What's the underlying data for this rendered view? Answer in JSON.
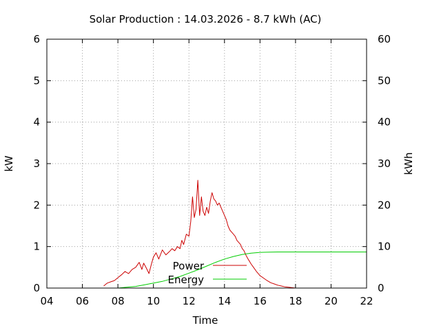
{
  "chart_data": {
    "type": "line",
    "title": "Solar Production : 14.03.2026 - 8.7 kWh (AC)",
    "xlabel": "Time",
    "ylabel": "kW",
    "y2label": "kWh",
    "xlim": [
      4,
      22
    ],
    "ylim": [
      0,
      6
    ],
    "y2lim": [
      0,
      60
    ],
    "x_ticks": [
      "04",
      "06",
      "08",
      "10",
      "12",
      "14",
      "16",
      "18",
      "20",
      "22"
    ],
    "y_ticks": [
      "0",
      "1",
      "2",
      "3",
      "4",
      "5",
      "6"
    ],
    "y2_ticks": [
      "0",
      "10",
      "20",
      "30",
      "40",
      "50",
      "60"
    ],
    "grid": true,
    "legend_position": "bottom-center",
    "colors": {
      "power": "#cc0000",
      "energy": "#00cc00"
    },
    "series": [
      {
        "name": "Power",
        "axis": "left",
        "x": [
          7.2,
          7.4,
          7.6,
          7.8,
          8.0,
          8.2,
          8.4,
          8.6,
          8.8,
          9.0,
          9.2,
          9.35,
          9.45,
          9.6,
          9.75,
          9.9,
          10.0,
          10.15,
          10.3,
          10.5,
          10.7,
          10.9,
          11.05,
          11.2,
          11.35,
          11.5,
          11.6,
          11.7,
          11.85,
          12.0,
          12.1,
          12.2,
          12.3,
          12.4,
          12.5,
          12.6,
          12.7,
          12.8,
          12.9,
          13.0,
          13.1,
          13.2,
          13.3,
          13.4,
          13.5,
          13.6,
          13.7,
          13.8,
          13.9,
          14.0,
          14.1,
          14.2,
          14.3,
          14.4,
          14.5,
          14.6,
          14.7,
          14.8,
          14.9,
          15.0,
          15.1,
          15.2,
          15.3,
          15.4,
          15.5,
          15.6,
          15.7,
          15.8,
          15.9,
          16.0,
          16.2,
          16.4,
          16.6,
          16.8,
          17.0,
          17.2,
          17.4,
          17.6,
          17.8,
          18.0
        ],
        "values": [
          0.05,
          0.12,
          0.15,
          0.18,
          0.25,
          0.32,
          0.4,
          0.35,
          0.45,
          0.5,
          0.62,
          0.45,
          0.6,
          0.48,
          0.35,
          0.6,
          0.75,
          0.85,
          0.7,
          0.92,
          0.8,
          0.88,
          0.95,
          0.9,
          1.0,
          0.95,
          1.15,
          1.05,
          1.3,
          1.25,
          1.6,
          2.2,
          1.7,
          1.9,
          2.6,
          1.75,
          2.2,
          1.85,
          1.75,
          1.95,
          1.8,
          2.1,
          2.3,
          2.15,
          2.1,
          2.0,
          2.05,
          1.95,
          1.85,
          1.75,
          1.65,
          1.5,
          1.4,
          1.35,
          1.3,
          1.25,
          1.15,
          1.1,
          1.05,
          0.95,
          0.9,
          0.8,
          0.72,
          0.65,
          0.58,
          0.52,
          0.46,
          0.4,
          0.35,
          0.3,
          0.24,
          0.18,
          0.13,
          0.1,
          0.07,
          0.05,
          0.03,
          0.02,
          0.01,
          0.0
        ]
      },
      {
        "name": "Energy",
        "axis": "right",
        "x": [
          8.0,
          8.5,
          9.0,
          9.5,
          10.0,
          10.5,
          11.0,
          11.5,
          12.0,
          12.5,
          13.0,
          13.5,
          14.0,
          14.5,
          15.0,
          15.5,
          16.0,
          16.5,
          17.0,
          17.5,
          18.0,
          19.0,
          20.0,
          21.0,
          22.0
        ],
        "values": [
          0.0,
          0.2,
          0.4,
          0.8,
          1.2,
          1.6,
          2.2,
          2.8,
          3.6,
          4.4,
          5.3,
          6.2,
          7.0,
          7.6,
          8.1,
          8.4,
          8.6,
          8.65,
          8.7,
          8.7,
          8.7,
          8.7,
          8.7,
          8.7,
          8.7
        ]
      }
    ]
  }
}
